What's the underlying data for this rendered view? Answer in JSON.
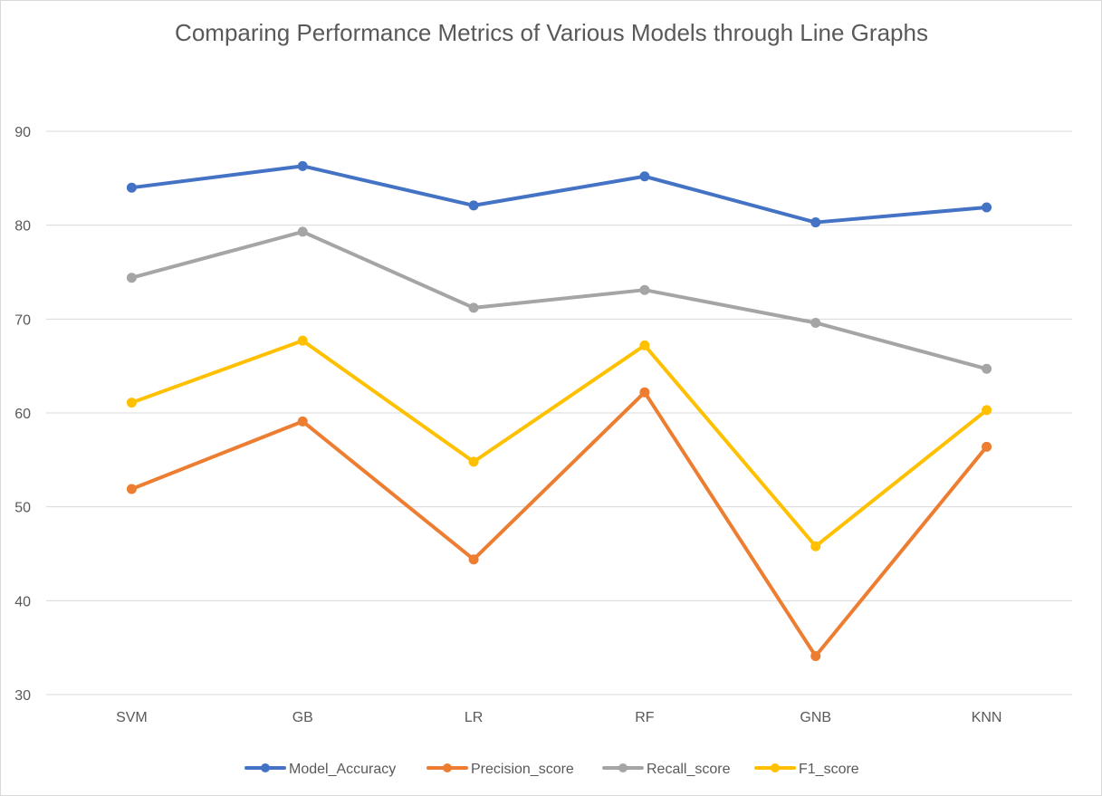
{
  "chart_data": {
    "type": "line",
    "title": "Comparing Performance Metrics of Various Models through Line Graphs",
    "xlabel": "",
    "ylabel": "",
    "categories": [
      "SVM",
      "GB",
      "LR",
      "RF",
      "GNB",
      "KNN"
    ],
    "ylim": [
      30,
      90
    ],
    "yticks": [
      30,
      40,
      50,
      60,
      70,
      80,
      90
    ],
    "grid": "horizontal",
    "legend_position": "bottom",
    "series": [
      {
        "name": "Model_Accuracy",
        "color": "#4472C4",
        "values": [
          84.0,
          86.3,
          82.1,
          85.2,
          80.3,
          81.9
        ]
      },
      {
        "name": "Precision_score",
        "color": "#ED7D31",
        "values": [
          51.9,
          59.1,
          44.4,
          62.2,
          34.1,
          56.4
        ]
      },
      {
        "name": "Recall_score",
        "color": "#A5A5A5",
        "values": [
          74.4,
          79.3,
          71.2,
          73.1,
          69.6,
          64.7
        ]
      },
      {
        "name": "F1_score",
        "color": "#FFC000",
        "values": [
          61.1,
          67.7,
          54.8,
          67.2,
          45.8,
          60.3
        ]
      }
    ]
  }
}
